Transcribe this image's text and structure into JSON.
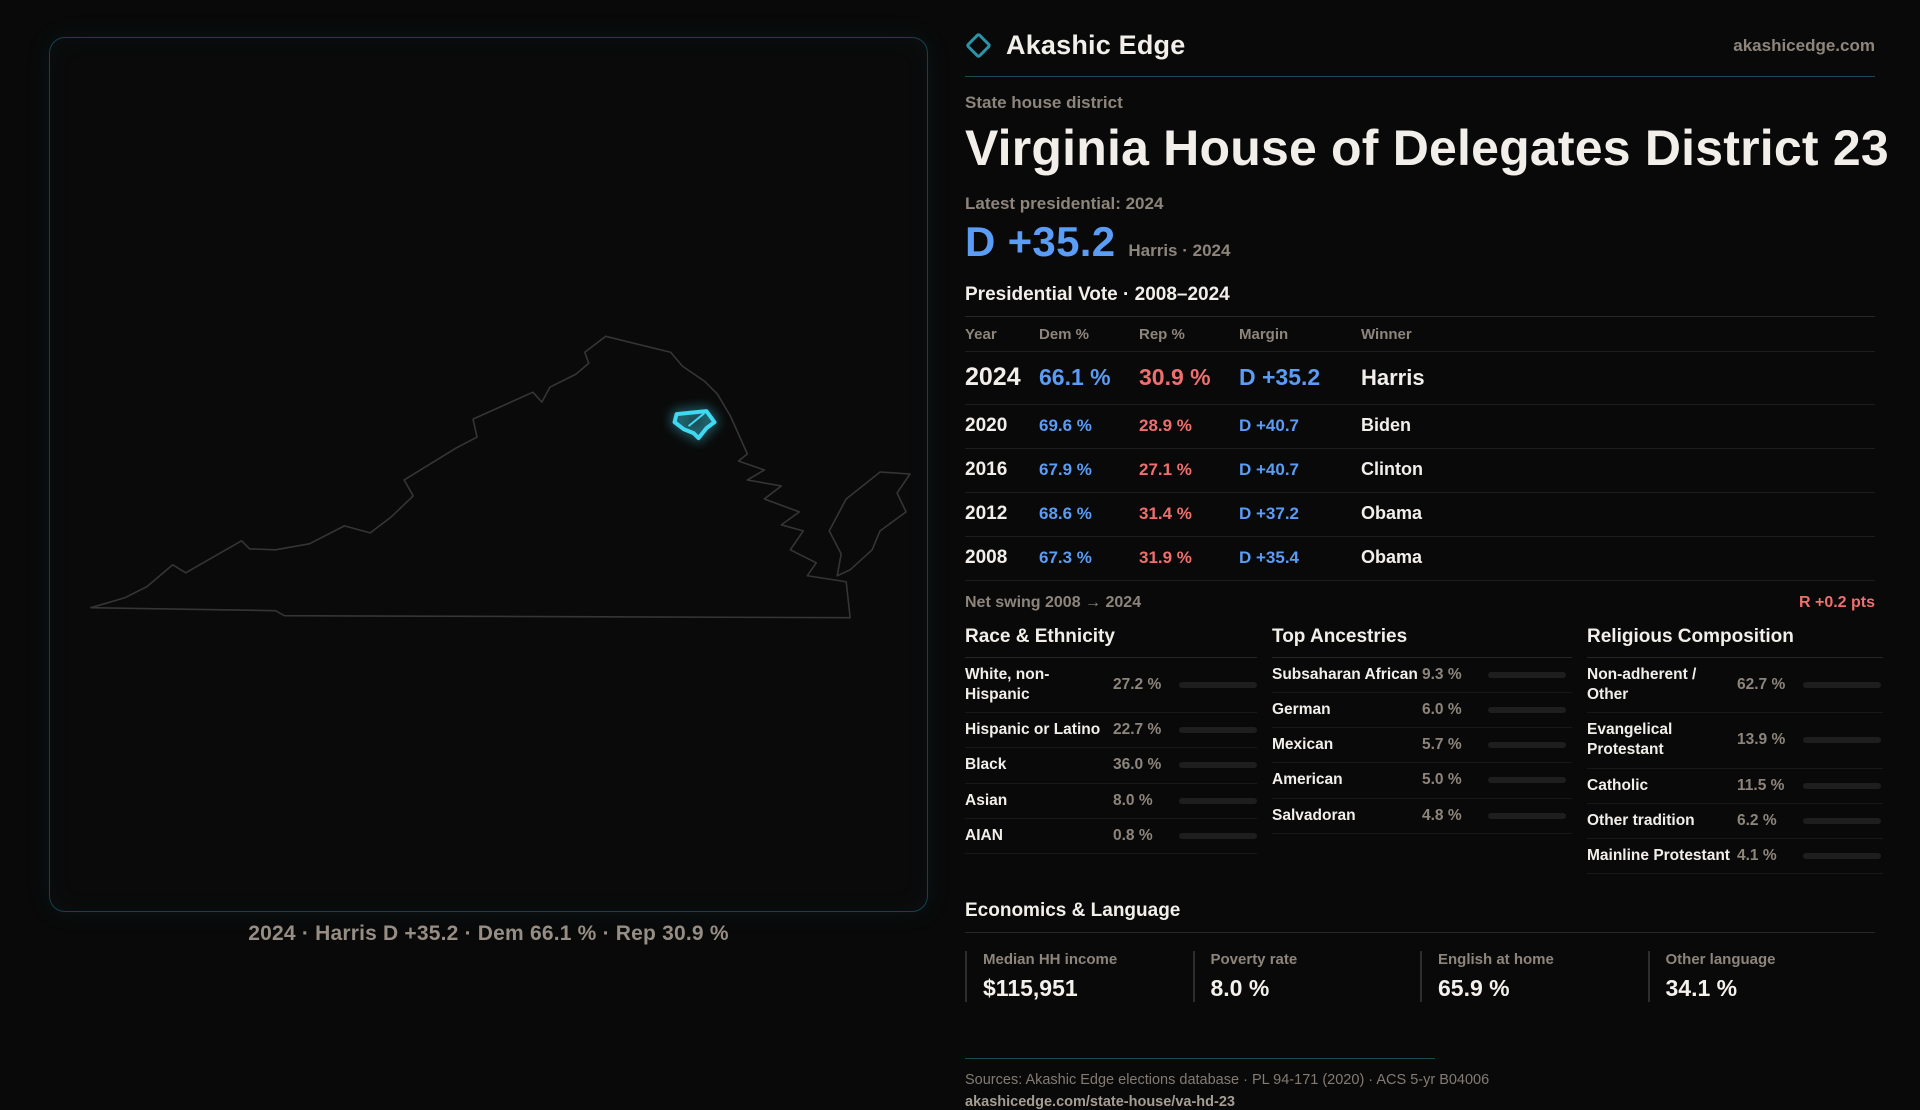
{
  "brand": {
    "name": "Akashic Edge",
    "site": "akashicedge.com"
  },
  "header": {
    "kicker": "State house district",
    "title": "Virginia House of Delegates District 23",
    "latest_label": "Latest presidential: 2024",
    "headline_margin": "D +35.2",
    "headline_sub": "Harris · 2024"
  },
  "vote_table": {
    "title": "Presidential Vote · 2008–2024",
    "columns": [
      "Year",
      "Dem %",
      "Rep %",
      "Margin",
      "Winner"
    ],
    "rows": [
      {
        "year": "2024",
        "dem": "66.1 %",
        "rep": "30.9 %",
        "margin": "D +35.2",
        "winner": "Harris"
      },
      {
        "year": "2020",
        "dem": "69.6 %",
        "rep": "28.9 %",
        "margin": "D +40.7",
        "winner": "Biden"
      },
      {
        "year": "2016",
        "dem": "67.9 %",
        "rep": "27.1 %",
        "margin": "D +40.7",
        "winner": "Clinton"
      },
      {
        "year": "2012",
        "dem": "68.6 %",
        "rep": "31.4 %",
        "margin": "D +37.2",
        "winner": "Obama"
      },
      {
        "year": "2008",
        "dem": "67.3 %",
        "rep": "31.9 %",
        "margin": "D +35.4",
        "winner": "Obama"
      }
    ]
  },
  "net_swing": {
    "label": "Net swing 2008 → 2024",
    "value": "R +0.2 pts"
  },
  "panels": [
    {
      "title": "Race & Ethnicity",
      "rows": [
        {
          "label": "White, non-Hispanic",
          "value": "27.2 %",
          "pct": 27.2,
          "color": "#8fa3c4"
        },
        {
          "label": "Hispanic or Latino",
          "value": "22.7 %",
          "pct": 22.7,
          "color": "#e2a23c"
        },
        {
          "label": "Black",
          "value": "36.0 %",
          "pct": 36.0,
          "color": "#9f86ea"
        },
        {
          "label": "Asian",
          "value": "8.0 %",
          "pct": 8.0,
          "color": "#2fc98e"
        },
        {
          "label": "AIAN",
          "value": "0.8 %",
          "pct": 0.8,
          "color": "#c2572a"
        }
      ]
    },
    {
      "title": "Top Ancestries",
      "rows": [
        {
          "label": "Subsaharan African",
          "value": "9.3 %",
          "pct": 9.3,
          "color": "#8f7cea"
        },
        {
          "label": "German",
          "value": "6.0 %",
          "pct": 6.0,
          "color": "#90a4c4"
        },
        {
          "label": "Mexican",
          "value": "5.7 %",
          "pct": 5.7,
          "color": "#e2a23c"
        },
        {
          "label": "American",
          "value": "5.0 %",
          "pct": 5.0,
          "color": "#90a4c4"
        },
        {
          "label": "Salvadoran",
          "value": "4.8 %",
          "pct": 4.8,
          "color": "#e2a23c"
        }
      ]
    },
    {
      "title": "Religious Composition",
      "rows": [
        {
          "label": "Non-adherent / Other",
          "value": "62.7 %",
          "pct": 62.7,
          "color": "#8b98ab"
        },
        {
          "label": "Evangelical Protestant",
          "value": "13.9 %",
          "pct": 13.9,
          "color": "#e77070"
        },
        {
          "label": "Catholic",
          "value": "11.5 %",
          "pct": 11.5,
          "color": "#e2b53c"
        },
        {
          "label": "Other tradition",
          "value": "6.2 %",
          "pct": 6.2,
          "color": "#9a9a9a"
        },
        {
          "label": "Mainline Protestant",
          "value": "4.1 %",
          "pct": 4.1,
          "color": "#4b8ef0"
        }
      ]
    }
  ],
  "economics": {
    "title": "Economics & Language",
    "stats": [
      {
        "label": "Median HH income",
        "value": "$115,951"
      },
      {
        "label": "Poverty rate",
        "value": "8.0 %"
      },
      {
        "label": "English at home",
        "value": "65.9 %"
      },
      {
        "label": "Other language",
        "value": "34.1 %"
      }
    ]
  },
  "map": {
    "caption": "2024 · Harris D +35.2 · Dem 66.1 % · Rep 30.9 %"
  },
  "footer": {
    "sources": "Sources: Akashic Edge elections database · PL 94-171 (2020) · ACS 5-yr B04006",
    "permalink": "akashicedge.com/state-house/va-hd-23"
  },
  "colors": {
    "dem_blue": "#5b9cf6",
    "rep_red": "#ef6f6f",
    "accent_teal": "#2b93a5",
    "district_highlight": "#3fd9f2",
    "muted_text": "#8d857c"
  }
}
